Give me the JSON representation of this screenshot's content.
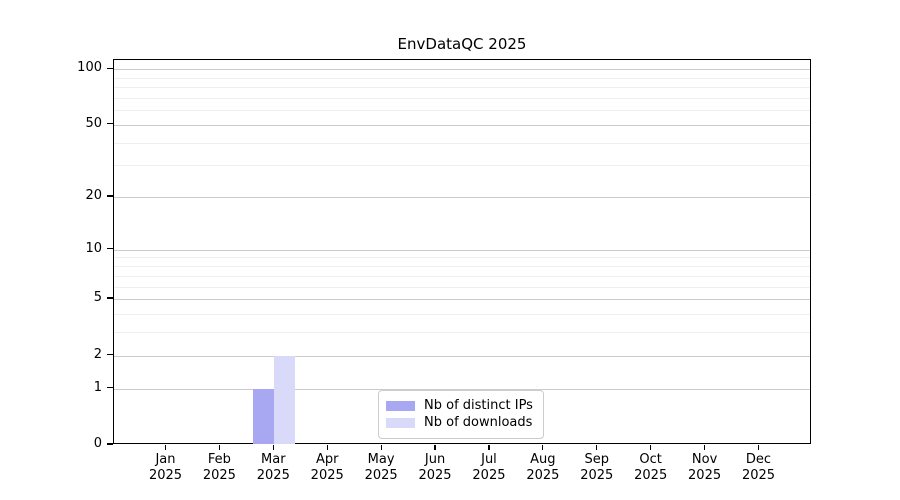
{
  "figure": {
    "background": "#ffffff"
  },
  "chart_data": {
    "type": "bar",
    "title": "EnvDataQC 2025",
    "xlabel": "",
    "ylabel": "",
    "categories": [
      "Jan 2025",
      "Feb 2025",
      "Mar 2025",
      "Apr 2025",
      "May 2025",
      "Jun 2025",
      "Jul 2025",
      "Aug 2025",
      "Sep 2025",
      "Oct 2025",
      "Nov 2025",
      "Dec 2025"
    ],
    "series": [
      {
        "name": "Nb of distinct IPs",
        "color": "#a8a8f2",
        "values": [
          0,
          0,
          1,
          0,
          0,
          0,
          0,
          0,
          0,
          0,
          0,
          0
        ]
      },
      {
        "name": "Nb of downloads",
        "color": "#d9d9fa",
        "values": [
          0,
          0,
          2,
          0,
          0,
          0,
          0,
          0,
          0,
          0,
          0,
          0
        ]
      }
    ],
    "y_scale": "log1p",
    "y_ticks": [
      0,
      1,
      2,
      5,
      10,
      20,
      50,
      100
    ],
    "y_minor_gridlines": [
      3,
      4,
      6,
      7,
      8,
      9,
      30,
      40,
      60,
      70,
      80,
      90
    ],
    "ylim": [
      0,
      112
    ],
    "grid": "horizontal",
    "legend_position": "inside-bottom-center"
  },
  "colors": {
    "bar_distinct_ips": "#a8a8f2",
    "bar_downloads": "#d9d9fa",
    "grid_major": "#cccccc",
    "grid_minor": "#efefef",
    "axis": "#000000",
    "text": "#000000",
    "legend_border": "#cccccc",
    "legend_background": "#ffffff"
  }
}
